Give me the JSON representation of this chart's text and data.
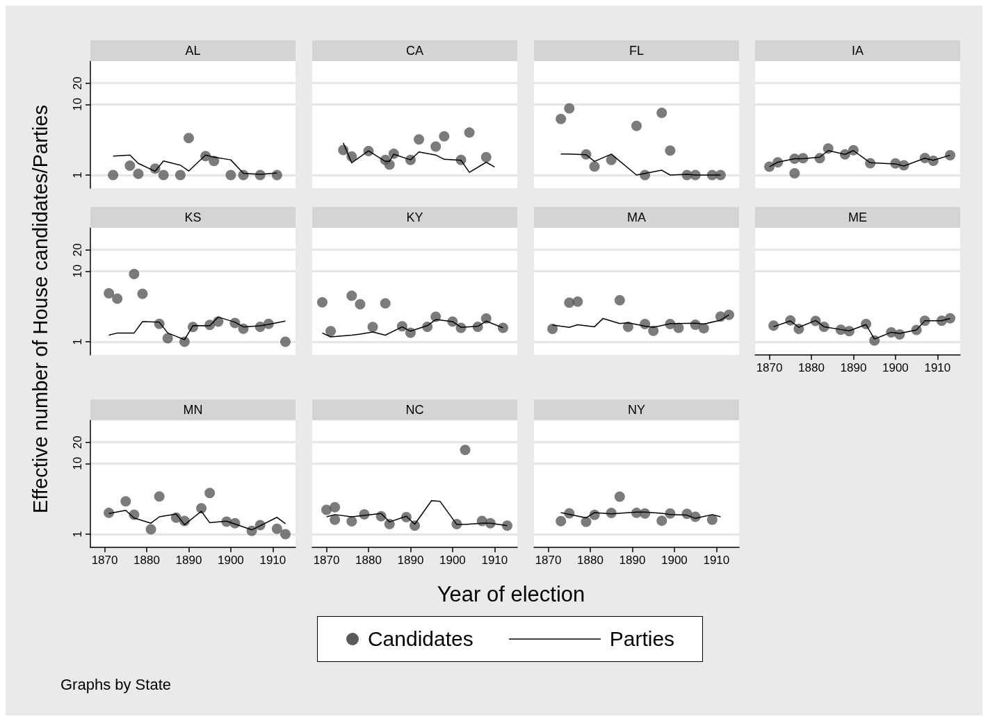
{
  "chart_data": [
    {
      "type": "scatter",
      "title": "AL",
      "ylabel": "Effective number of House candidates/Parties",
      "legend": "bottom",
      "annotations": [
        "Graphs by State"
      ],
      "xlim": [
        1866.6,
        1915.4
      ],
      "xticks": [
        1870,
        1880,
        1890,
        1900,
        1910
      ],
      "ylim": [
        0.65,
        41
      ],
      "yticks": [
        1,
        10,
        20
      ],
      "log": "y",
      "grid": "y",
      "tick_labels": "y",
      "series": [
        {
          "name": "Candidates",
          "type": "scatter",
          "marker": "circle",
          "color": "#5a5a5a",
          "x": [
            1872,
            1876,
            1878,
            1882,
            1884,
            1888,
            1890,
            1894,
            1896,
            1900,
            1903,
            1907,
            1911
          ],
          "values": [
            1,
            1.36,
            1.04,
            1.23,
            1,
            1,
            3.34,
            1.85,
            1.58,
            1,
            1,
            1,
            1
          ]
        },
        {
          "name": "Parties",
          "type": "line",
          "color": "#000000",
          "x": [
            1872,
            1876,
            1878,
            1882,
            1884,
            1888,
            1890,
            1894,
            1896,
            1900,
            1903,
            1907,
            1911
          ],
          "values": [
            1.85,
            1.92,
            1.46,
            1.13,
            1.58,
            1.38,
            1.14,
            1.92,
            1.79,
            1.64,
            1.06,
            1.02,
            1.07
          ]
        }
      ]
    },
    {
      "type": "scatter",
      "title": "CA",
      "xlim": [
        1866.6,
        1915.4
      ],
      "xticks": [
        1870,
        1880,
        1890,
        1900,
        1910
      ],
      "ylim": [
        0.65,
        41
      ],
      "yticks": [
        1,
        10,
        20
      ],
      "log": "y",
      "grid": "y",
      "tick_labels": false,
      "series": [
        {
          "type": "scatter",
          "marker": "circle",
          "color": "#5a5a5a",
          "x": [
            1874,
            1876,
            1880,
            1884,
            1885,
            1886,
            1890,
            1892,
            1896,
            1898,
            1902,
            1904,
            1908
          ],
          "values": [
            2.26,
            1.83,
            2.18,
            1.64,
            1.4,
            2.0,
            1.64,
            3.19,
            2.53,
            3.53,
            1.64,
            3.99,
            1.79
          ]
        },
        {
          "type": "line",
          "color": "#000000",
          "x": [
            1874,
            1876,
            1880,
            1884,
            1885,
            1886,
            1890,
            1892,
            1896,
            1898,
            1902,
            1904,
            1908,
            1910
          ],
          "values": [
            2.85,
            1.49,
            2.2,
            1.56,
            1.56,
            1.97,
            1.64,
            2.12,
            1.92,
            1.67,
            1.62,
            1.09,
            1.52,
            1.3
          ]
        }
      ]
    },
    {
      "type": "scatter",
      "title": "FL",
      "xlim": [
        1866.6,
        1915.4
      ],
      "xticks": [
        1870,
        1880,
        1890,
        1900,
        1910
      ],
      "ylim": [
        0.65,
        41
      ],
      "yticks": [
        1,
        10,
        20
      ],
      "log": "y",
      "grid": "y",
      "tick_labels": false,
      "series": [
        {
          "type": "scatter",
          "marker": "circle",
          "color": "#5a5a5a",
          "x": [
            1873,
            1875,
            1879,
            1881,
            1885,
            1891,
            1893,
            1897,
            1899,
            1903,
            1905,
            1909,
            1911
          ],
          "values": [
            6.22,
            8.77,
            1.96,
            1.32,
            1.64,
            4.97,
            1,
            7.58,
            2.22,
            1,
            1,
            1,
            1
          ]
        },
        {
          "type": "line",
          "color": "#000000",
          "x": [
            1873,
            1875,
            1879,
            1881,
            1885,
            1891,
            1897,
            1899,
            1903,
            1905,
            1909,
            1911
          ],
          "values": [
            1.98,
            1.98,
            1.94,
            1.56,
            1.98,
            1,
            1.17,
            1,
            1.02,
            1,
            1,
            1
          ]
        }
      ]
    },
    {
      "type": "scatter",
      "title": "IA",
      "xlim": [
        1866.6,
        1915.4
      ],
      "xticks": [
        1870,
        1880,
        1890,
        1900,
        1910
      ],
      "ylim": [
        0.65,
        41
      ],
      "yticks": [
        1,
        10,
        20
      ],
      "log": "y",
      "grid": "y",
      "tick_labels": false,
      "series": [
        {
          "type": "scatter",
          "marker": "circle",
          "color": "#5a5a5a",
          "x": [
            1870,
            1872,
            1876,
            1876,
            1878,
            1882,
            1884,
            1888,
            1890,
            1894,
            1900,
            1902,
            1907,
            1909,
            1913
          ],
          "values": [
            1.31,
            1.51,
            1.7,
            1.06,
            1.73,
            1.73,
            2.38,
            1.96,
            2.24,
            1.47,
            1.46,
            1.37,
            1.74,
            1.59,
            1.91
          ]
        },
        {
          "type": "line",
          "color": "#000000",
          "x": [
            1870,
            1872,
            1876,
            1878,
            1882,
            1884,
            1888,
            1890,
            1894,
            1900,
            1902,
            1907,
            1909,
            1913
          ],
          "values": [
            1.31,
            1.52,
            1.7,
            1.7,
            1.79,
            2.22,
            1.96,
            2.22,
            1.49,
            1.44,
            1.34,
            1.73,
            1.62,
            1.91
          ]
        }
      ]
    },
    {
      "type": "scatter",
      "title": "KS",
      "xlim": [
        1866.6,
        1915.4
      ],
      "xticks": [
        1870,
        1880,
        1890,
        1900,
        1910
      ],
      "ylim": [
        0.65,
        41
      ],
      "yticks": [
        1,
        10,
        20
      ],
      "log": "y",
      "grid": "y",
      "tick_labels": "y",
      "series": [
        {
          "type": "scatter",
          "marker": "circle",
          "color": "#5a5a5a",
          "x": [
            1871,
            1873,
            1877,
            1879,
            1883,
            1885,
            1889,
            1891,
            1895,
            1897,
            1901,
            1903,
            1907,
            1909,
            1913
          ],
          "values": [
            4.86,
            4.08,
            9.1,
            4.77,
            1.79,
            1.12,
            1,
            1.62,
            1.73,
            1.93,
            1.84,
            1.53,
            1.63,
            1.79,
            1
          ]
        },
        {
          "type": "line",
          "color": "#000000",
          "x": [
            1871,
            1873,
            1877,
            1879,
            1883,
            1885,
            1889,
            1891,
            1895,
            1897,
            1901,
            1903,
            1907,
            1909,
            1913
          ],
          "values": [
            1.24,
            1.33,
            1.33,
            1.93,
            1.89,
            1.33,
            1.07,
            1.69,
            1.68,
            2.24,
            1.89,
            1.62,
            1.68,
            1.76,
            1.96
          ]
        }
      ]
    },
    {
      "type": "scatter",
      "title": "KY",
      "xlim": [
        1866.6,
        1915.4
      ],
      "xticks": [
        1870,
        1880,
        1890,
        1900,
        1910
      ],
      "ylim": [
        0.65,
        41
      ],
      "yticks": [
        1,
        10,
        20
      ],
      "log": "y",
      "grid": "y",
      "tick_labels": false,
      "series": [
        {
          "type": "scatter",
          "marker": "circle",
          "color": "#5a5a5a",
          "x": [
            1869,
            1871,
            1876,
            1878,
            1881,
            1884,
            1888,
            1890,
            1894,
            1896,
            1900,
            1902,
            1906,
            1908,
            1912
          ],
          "values": [
            3.62,
            1.41,
            4.47,
            3.39,
            1.62,
            3.49,
            1.65,
            1.34,
            1.63,
            2.26,
            1.93,
            1.57,
            1.63,
            2.13,
            1.57
          ]
        },
        {
          "type": "line",
          "color": "#000000",
          "x": [
            1869,
            1871,
            1876,
            1878,
            1881,
            1884,
            1888,
            1890,
            1894,
            1896,
            1900,
            1902,
            1906,
            1908,
            1912
          ],
          "values": [
            1.33,
            1.17,
            1.24,
            1.28,
            1.37,
            1.24,
            1.62,
            1.41,
            1.69,
            2.06,
            1.93,
            1.6,
            1.65,
            1.96,
            1.57
          ]
        }
      ]
    },
    {
      "type": "scatter",
      "title": "MA",
      "xlim": [
        1866.6,
        1915.4
      ],
      "xticks": [
        1870,
        1880,
        1890,
        1900,
        1910
      ],
      "ylim": [
        0.65,
        41
      ],
      "yticks": [
        1,
        10,
        20
      ],
      "log": "y",
      "grid": "y",
      "tick_labels": false,
      "series": [
        {
          "type": "scatter",
          "marker": "circle",
          "color": "#5a5a5a",
          "x": [
            1871,
            1875,
            1877,
            1887,
            1889,
            1893,
            1895,
            1899,
            1901,
            1905,
            1907,
            1911,
            1913
          ],
          "values": [
            1.52,
            3.57,
            3.69,
            3.86,
            1.63,
            1.78,
            1.43,
            1.78,
            1.57,
            1.74,
            1.55,
            2.27,
            2.41
          ]
        },
        {
          "type": "line",
          "color": "#000000",
          "x": [
            1871,
            1875,
            1877,
            1881,
            1883,
            1887,
            1889,
            1893,
            1895,
            1899,
            1905,
            1907,
            1911,
            1913
          ],
          "values": [
            1.72,
            1.6,
            1.74,
            1.63,
            2.13,
            1.81,
            1.85,
            1.66,
            1.6,
            1.8,
            1.83,
            1.78,
            2.02,
            2.41
          ]
        }
      ]
    },
    {
      "type": "scatter",
      "title": "ME",
      "xlim": [
        1866.6,
        1915.4
      ],
      "xticks": [
        1870,
        1880,
        1890,
        1900,
        1910
      ],
      "ylim": [
        0.65,
        41
      ],
      "yticks": [
        1,
        10,
        20
      ],
      "log": "y",
      "grid": "y",
      "tick_labels": "x",
      "series": [
        {
          "type": "scatter",
          "marker": "circle",
          "color": "#5a5a5a",
          "x": [
            1871,
            1875,
            1877,
            1881,
            1883,
            1887,
            1889,
            1893,
            1895,
            1899,
            1901,
            1905,
            1907,
            1911,
            1913
          ],
          "values": [
            1.69,
            2.0,
            1.52,
            1.97,
            1.63,
            1.48,
            1.41,
            1.78,
            1.04,
            1.36,
            1.27,
            1.47,
            1.98,
            1.98,
            2.15
          ]
        },
        {
          "type": "line",
          "color": "#000000",
          "x": [
            1871,
            1875,
            1877,
            1881,
            1883,
            1887,
            1889,
            1893,
            1895,
            1899,
            1901,
            1905,
            1907,
            1911,
            1913
          ],
          "values": [
            1.63,
            1.97,
            1.6,
            2.0,
            1.63,
            1.49,
            1.43,
            1.75,
            1.09,
            1.36,
            1.31,
            1.47,
            1.98,
            1.98,
            2.13
          ]
        }
      ]
    },
    {
      "type": "scatter",
      "title": "MN",
      "xlim": [
        1866.6,
        1915.4
      ],
      "xticks": [
        1870,
        1880,
        1890,
        1900,
        1910
      ],
      "ylim": [
        0.65,
        41
      ],
      "yticks": [
        1,
        10,
        20
      ],
      "log": "y",
      "grid": "y",
      "series": [
        {
          "type": "scatter",
          "marker": "circle",
          "color": "#5a5a5a",
          "x": [
            1871,
            1875,
            1877,
            1881,
            1883,
            1887,
            1889,
            1893,
            1895,
            1899,
            1901,
            1905,
            1907,
            1911,
            1913
          ],
          "values": [
            2.0,
            2.92,
            1.88,
            1.17,
            3.42,
            1.71,
            1.54,
            2.32,
            3.83,
            1.5,
            1.43,
            1.11,
            1.34,
            1.19,
            1
          ]
        },
        {
          "type": "line",
          "color": "#000000",
          "x": [
            1871,
            1875,
            1877,
            1881,
            1883,
            1887,
            1889,
            1893,
            1895,
            1899,
            1905,
            1911,
            1913
          ],
          "values": [
            1.96,
            2.17,
            1.69,
            1.43,
            1.76,
            1.93,
            1.36,
            2.11,
            1.45,
            1.53,
            1.15,
            1.73,
            1.41
          ]
        }
      ]
    },
    {
      "type": "scatter",
      "title": "NC",
      "xlabel": "Year of election",
      "xlim": [
        1866.6,
        1915.4
      ],
      "xticks": [
        1870,
        1880,
        1890,
        1900,
        1910
      ],
      "ylim": [
        0.65,
        41
      ],
      "yticks": [
        1,
        10,
        20
      ],
      "log": "y",
      "grid": "y",
      "tick_labels": "x",
      "series": [
        {
          "type": "scatter",
          "marker": "circle",
          "color": "#5a5a5a",
          "x": [
            1870,
            1872,
            1872,
            1876,
            1879,
            1883,
            1885,
            1889,
            1891,
            1901,
            1903,
            1907,
            1909,
            1913
          ],
          "values": [
            2.21,
            2.41,
            1.6,
            1.52,
            1.91,
            1.79,
            1.39,
            1.74,
            1.32,
            1.39,
            15.6,
            1.54,
            1.43,
            1.32
          ]
        },
        {
          "type": "line",
          "color": "#000000",
          "x": [
            1870,
            1872,
            1876,
            1883,
            1885,
            1889,
            1891,
            1895,
            1897,
            1901,
            1903,
            1907,
            1909,
            1913
          ],
          "values": [
            1.76,
            1.89,
            1.76,
            1.96,
            1.49,
            1.79,
            1.38,
            2.98,
            2.92,
            1.37,
            1.37,
            1.43,
            1.43,
            1.32
          ]
        }
      ]
    },
    {
      "type": "scatter",
      "title": "NY",
      "xlim": [
        1866.6,
        1915.4
      ],
      "xticks": [
        1870,
        1880,
        1890,
        1900,
        1910
      ],
      "ylim": [
        0.65,
        41
      ],
      "yticks": [
        1,
        10,
        20
      ],
      "log": "y",
      "grid": "y",
      "tick_labels": "x",
      "series": [
        {
          "type": "scatter",
          "marker": "circle",
          "color": "#5a5a5a",
          "x": [
            1873,
            1875,
            1879,
            1881,
            1885,
            1887,
            1891,
            1893,
            1897,
            1899,
            1903,
            1905,
            1909
          ],
          "values": [
            1.53,
            1.97,
            1.49,
            1.87,
            1.99,
            3.4,
            2.0,
            1.96,
            1.55,
            1.96,
            1.94,
            1.76,
            1.6
          ]
        },
        {
          "type": "line",
          "color": "#000000",
          "x": [
            1873,
            1879,
            1881,
            1885,
            1891,
            1893,
            1897,
            1899,
            1903,
            1905,
            1909,
            1911
          ],
          "values": [
            2.02,
            1.7,
            2.02,
            1.94,
            2.05,
            2.05,
            1.97,
            1.9,
            1.86,
            1.67,
            1.89,
            1.76
          ]
        }
      ]
    }
  ]
}
